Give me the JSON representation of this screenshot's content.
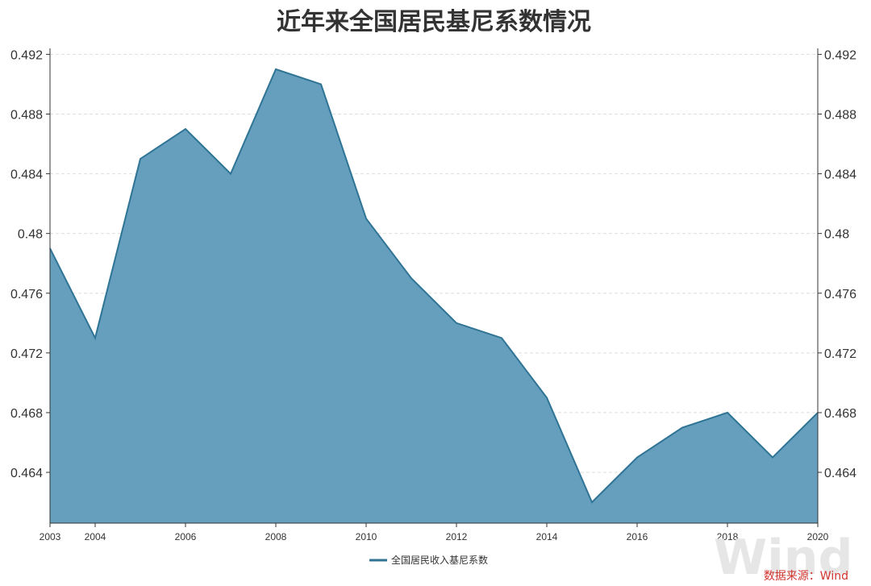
{
  "colors": {
    "area_fill": "#669fbd",
    "line": "#2f7495",
    "grid": "#dedede",
    "axis": "#333333",
    "source_text": "#d0342c"
  },
  "chart_data": {
    "type": "area",
    "title": "近年来全国居民基尼系数情况",
    "x": [
      2003,
      2004,
      2005,
      2006,
      2007,
      2008,
      2009,
      2010,
      2011,
      2012,
      2013,
      2014,
      2015,
      2016,
      2017,
      2018,
      2019,
      2020
    ],
    "x_tick_labels": [
      "2003",
      "2004",
      "2006",
      "2008",
      "2010",
      "2012",
      "2014",
      "2016",
      "2018",
      "2020"
    ],
    "series": [
      {
        "name": "全国居民收入基尼系数",
        "values": [
          0.479,
          0.473,
          0.485,
          0.487,
          0.484,
          0.491,
          0.49,
          0.481,
          0.477,
          0.474,
          0.473,
          0.469,
          0.462,
          0.465,
          0.467,
          0.468,
          0.465,
          0.468
        ]
      }
    ],
    "y_tick_labels": [
      "0.492",
      "0.488",
      "0.484",
      "0.48",
      "0.476",
      "0.472",
      "0.468",
      "0.464"
    ],
    "ylim": [
      0.4606,
      0.4924
    ],
    "xlim": [
      2003,
      2020
    ],
    "dual_y_axis": true,
    "grid": true,
    "legend": "bottom-center"
  },
  "source_label": "数据来源：Wind",
  "watermark_text": "Wind"
}
